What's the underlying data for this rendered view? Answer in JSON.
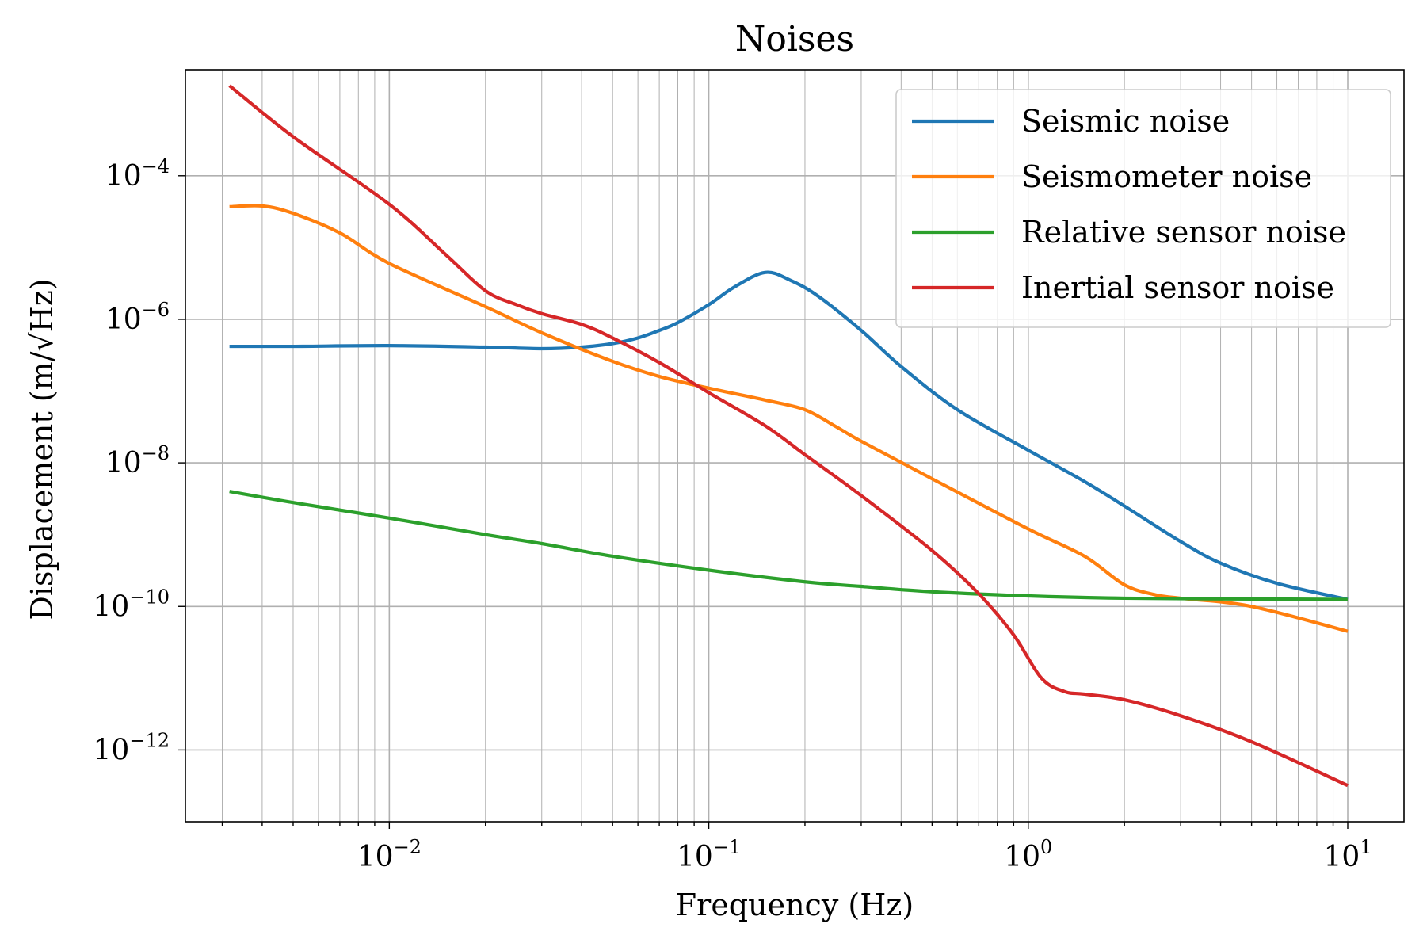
{
  "chart_data": {
    "type": "line",
    "title": "Noises",
    "xlabel": "Frequency (Hz)",
    "ylabel": "Displacement (m/√Hz)",
    "x_scale": "log",
    "y_scale": "log",
    "xlim": [
      0.0023,
      15.0
    ],
    "ylim": [
      1e-13,
      0.003
    ],
    "x_ticks": [
      {
        "value": 0.01,
        "base": "10",
        "exp": "−2"
      },
      {
        "value": 0.1,
        "base": "10",
        "exp": "−1"
      },
      {
        "value": 1,
        "base": "10",
        "exp": "0"
      },
      {
        "value": 10,
        "base": "10",
        "exp": "1"
      }
    ],
    "y_ticks": [
      {
        "value": 0.0001,
        "base": "10",
        "exp": "−4"
      },
      {
        "value": 1e-06,
        "base": "10",
        "exp": "−6"
      },
      {
        "value": 1e-08,
        "base": "10",
        "exp": "−8"
      },
      {
        "value": 1e-10,
        "base": "10",
        "exp": "−10"
      },
      {
        "value": 1e-12,
        "base": "10",
        "exp": "−12"
      }
    ],
    "grid": true,
    "legend_position": "top-right",
    "series": [
      {
        "name": "Seismic noise",
        "color": "#1f77b4",
        "x": [
          0.00316,
          0.005,
          0.01,
          0.02,
          0.03,
          0.04,
          0.05,
          0.06,
          0.07,
          0.08,
          0.1,
          0.12,
          0.15,
          0.18,
          0.22,
          0.3,
          0.4,
          0.6,
          1.0,
          1.5,
          2.0,
          3.0,
          4.0,
          6.0,
          10.0
        ],
        "y": [
          4.2e-07,
          4.2e-07,
          4.3e-07,
          4.1e-07,
          3.9e-07,
          4.1e-07,
          4.6e-07,
          5.5e-07,
          7e-07,
          9e-07,
          1.6e-06,
          2.8e-06,
          4.5e-06,
          3.5e-06,
          2.1e-06,
          7e-07,
          2.2e-07,
          5.5e-08,
          1.5e-08,
          5.5e-09,
          2.5e-09,
          8e-10,
          4e-10,
          2.1e-10,
          1.25e-10
        ]
      },
      {
        "name": "Seismometer noise",
        "color": "#ff7f0e",
        "x": [
          0.00316,
          0.004,
          0.005,
          0.007,
          0.01,
          0.02,
          0.03,
          0.05,
          0.07,
          0.1,
          0.15,
          0.2,
          0.25,
          0.3,
          0.5,
          1.0,
          1.5,
          2.0,
          2.5,
          3.0,
          5.0,
          10.0
        ],
        "y": [
          3.7e-05,
          3.8e-05,
          3e-05,
          1.6e-05,
          6e-06,
          1.5e-06,
          6.5e-07,
          2.6e-07,
          1.6e-07,
          1.1e-07,
          7.5e-08,
          5.5e-08,
          3.2e-08,
          2e-08,
          6e-09,
          1.2e-09,
          5e-10,
          2e-10,
          1.45e-10,
          1.3e-10,
          1e-10,
          4.5e-11
        ]
      },
      {
        "name": "Relative sensor noise",
        "color": "#2ca02c",
        "x": [
          0.00316,
          0.005,
          0.01,
          0.02,
          0.03,
          0.05,
          0.1,
          0.2,
          0.3,
          0.5,
          1.0,
          2.0,
          5.0,
          10.0
        ],
        "y": [
          4e-09,
          2.8e-09,
          1.7e-09,
          1e-09,
          7.5e-10,
          5e-10,
          3.2e-10,
          2.2e-10,
          1.9e-10,
          1.6e-10,
          1.4e-10,
          1.3e-10,
          1.27e-10,
          1.25e-10
        ]
      },
      {
        "name": "Inertial sensor noise",
        "color": "#d62728",
        "x": [
          0.00316,
          0.005,
          0.01,
          0.015,
          0.02,
          0.025,
          0.03,
          0.04,
          0.05,
          0.07,
          0.1,
          0.15,
          0.2,
          0.3,
          0.5,
          0.7,
          0.9,
          1.1,
          1.3,
          1.5,
          2.0,
          3.0,
          5.0,
          10.0
        ],
        "y": [
          0.0018,
          0.00035,
          4e-05,
          8e-06,
          2.5e-06,
          1.6e-06,
          1.2e-06,
          8.5e-07,
          5.5e-07,
          2.5e-07,
          9.5e-08,
          3.3e-08,
          1.3e-08,
          3.5e-09,
          6e-10,
          1.5e-10,
          4e-11,
          1e-11,
          6.5e-12,
          6e-12,
          5e-12,
          3e-12,
          1.3e-12,
          3.2e-13
        ]
      }
    ]
  }
}
